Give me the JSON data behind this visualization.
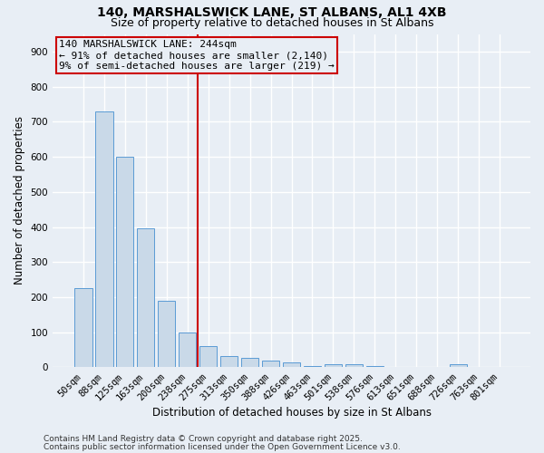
{
  "title_line1": "140, MARSHALSWICK LANE, ST ALBANS, AL1 4XB",
  "title_line2": "Size of property relative to detached houses in St Albans",
  "xlabel": "Distribution of detached houses by size in St Albans",
  "ylabel": "Number of detached properties",
  "categories": [
    "50sqm",
    "88sqm",
    "125sqm",
    "163sqm",
    "200sqm",
    "238sqm",
    "275sqm",
    "313sqm",
    "350sqm",
    "388sqm",
    "426sqm",
    "463sqm",
    "501sqm",
    "538sqm",
    "576sqm",
    "613sqm",
    "651sqm",
    "688sqm",
    "726sqm",
    "763sqm",
    "801sqm"
  ],
  "values": [
    225,
    730,
    600,
    395,
    190,
    100,
    60,
    32,
    28,
    20,
    15,
    3,
    10,
    10,
    3,
    0,
    0,
    0,
    8,
    0,
    0
  ],
  "bar_color": "#c9d9e8",
  "bar_edge_color": "#5b9bd5",
  "vline_x": 5.5,
  "vline_color": "#cc0000",
  "annotation_text": "140 MARSHALSWICK LANE: 244sqm\n← 91% of detached houses are smaller (2,140)\n9% of semi-detached houses are larger (219) →",
  "annotation_box_color": "#cc0000",
  "ylim": [
    0,
    950
  ],
  "yticks": [
    0,
    100,
    200,
    300,
    400,
    500,
    600,
    700,
    800,
    900
  ],
  "footer_line1": "Contains HM Land Registry data © Crown copyright and database right 2025.",
  "footer_line2": "Contains public sector information licensed under the Open Government Licence v3.0.",
  "bg_color": "#e8eef5",
  "grid_color": "#ffffff",
  "title_fontsize": 10,
  "subtitle_fontsize": 9,
  "axis_label_fontsize": 8.5,
  "tick_fontsize": 7.5,
  "annotation_fontsize": 8,
  "footer_fontsize": 6.5
}
